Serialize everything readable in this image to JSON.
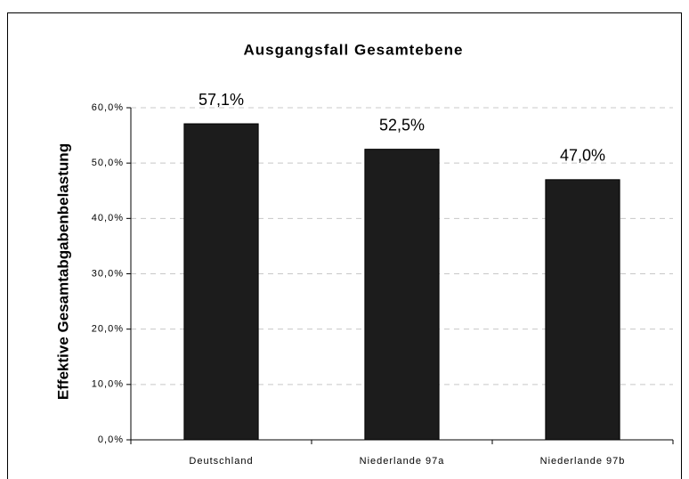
{
  "chart_data": {
    "type": "bar",
    "title": "Ausgangsfall Gesamtebene",
    "y_label": "Effektive Gesamtabgabenbelastung",
    "categories": [
      "Deutschland",
      "Niederlande 97a",
      "Niederlande 97b"
    ],
    "values": [
      57.1,
      52.5,
      47.0
    ],
    "value_labels": [
      "57,1%",
      "52,5%",
      "47,0%"
    ],
    "color": "#1c1c1c",
    "ylim": [
      0,
      60
    ],
    "yticks": [
      {
        "value": 0,
        "label": "0,0%"
      },
      {
        "value": 10,
        "label": "10,0%"
      },
      {
        "value": 20,
        "label": "20,0%"
      },
      {
        "value": 30,
        "label": "30,0%"
      },
      {
        "value": 40,
        "label": "40,0%"
      },
      {
        "value": 50,
        "label": "50,0%"
      },
      {
        "value": 60,
        "label": "60,0%"
      }
    ],
    "grid": true
  }
}
